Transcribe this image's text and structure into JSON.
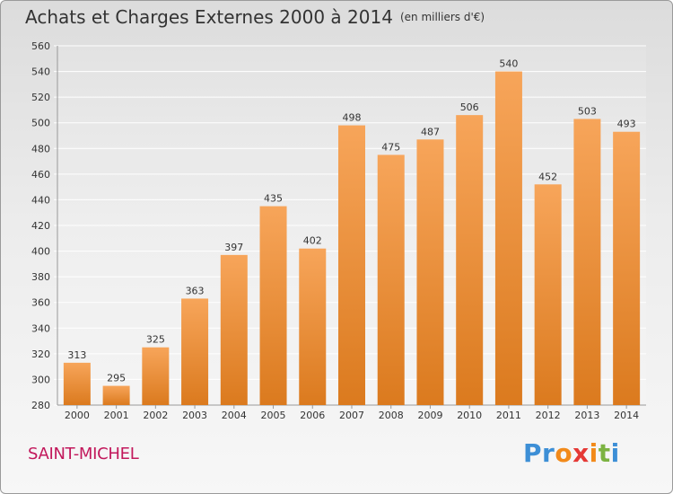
{
  "header": {
    "title": "Achats et Charges Externes 2000 à 2014",
    "subtitle": "(en milliers d'€)"
  },
  "footer": {
    "commune": "SAINT-MICHEL"
  },
  "brand": {
    "logo_text": "Proxiti",
    "logo_colors": [
      "#3d8fd6",
      "#3d8fd6",
      "#f28a1a",
      "#e53935",
      "#f28a1a",
      "#7cb342",
      "#3d8fd6"
    ]
  },
  "colors": {
    "bar_top": "#f7a55a",
    "bar_bottom": "#db7a1e",
    "grid": "#ffffff",
    "text": "#333333"
  },
  "chart_data": {
    "type": "bar",
    "title": "Achats et Charges Externes 2000 à 2014",
    "subtitle": "(en milliers d'€)",
    "categories": [
      "2000",
      "2001",
      "2002",
      "2003",
      "2004",
      "2005",
      "2006",
      "2007",
      "2008",
      "2009",
      "2010",
      "2011",
      "2012",
      "2013",
      "2014"
    ],
    "values": [
      313,
      295,
      325,
      363,
      397,
      435,
      402,
      498,
      475,
      487,
      506,
      540,
      452,
      503,
      493
    ],
    "ylim": [
      280,
      560
    ],
    "yticks": [
      280,
      300,
      320,
      340,
      360,
      380,
      400,
      420,
      440,
      460,
      480,
      500,
      520,
      540,
      560
    ],
    "grid": true,
    "xlabel": "",
    "ylabel": ""
  }
}
